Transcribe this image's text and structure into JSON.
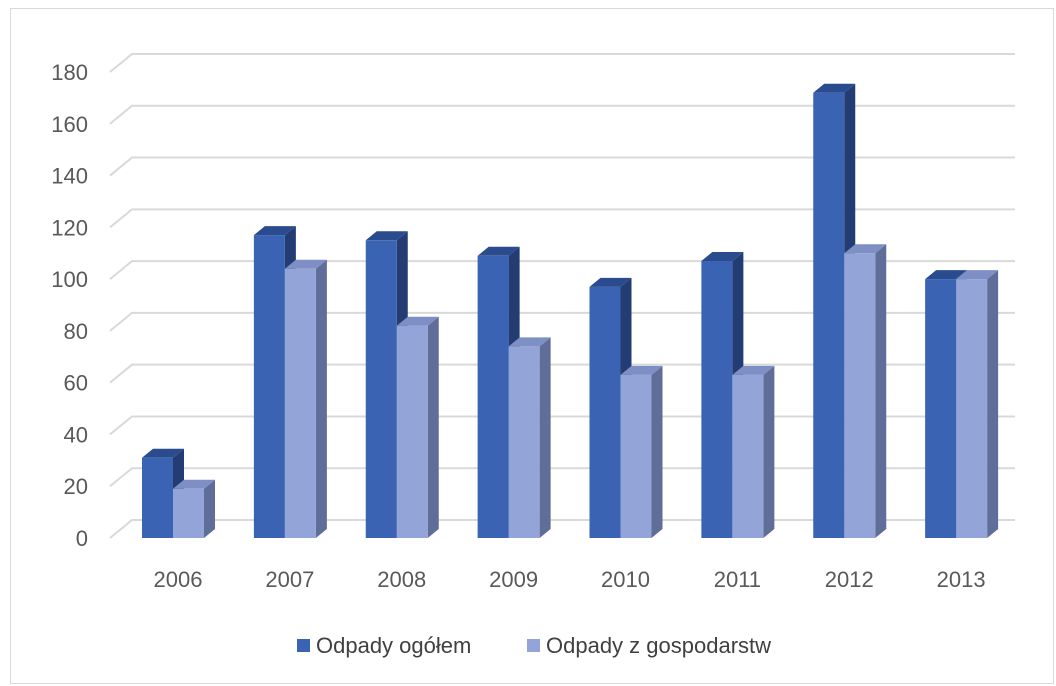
{
  "chart_data": {
    "type": "bar",
    "categories": [
      "2006",
      "2007",
      "2008",
      "2009",
      "2010",
      "2011",
      "2012",
      "2013"
    ],
    "series": [
      {
        "name": "Odpady ogółem",
        "values": [
          31,
          117,
          115,
          109,
          97,
          107,
          172,
          100
        ]
      },
      {
        "name": "Odpady z gospodarstw",
        "values": [
          19,
          104,
          82,
          74,
          63,
          63,
          110,
          100
        ]
      }
    ],
    "title": "",
    "xlabel": "",
    "ylabel": "",
    "ylim": [
      0,
      180
    ],
    "yticks": [
      "0",
      "20",
      "40",
      "60",
      "80",
      "100",
      "120",
      "140",
      "160",
      "180"
    ],
    "grid": true,
    "legend_position": "bottom",
    "style": "3d-clustered-column",
    "colors": {
      "series_0": {
        "front": "#3a63b3",
        "side": "#233d74",
        "top": "#2a4b8e"
      },
      "series_1": {
        "front": "#92a4d8",
        "side": "#5f6e99",
        "top": "#7d8fc4"
      },
      "gridline": "#d9d9d9",
      "tick_text": "#595959"
    }
  }
}
